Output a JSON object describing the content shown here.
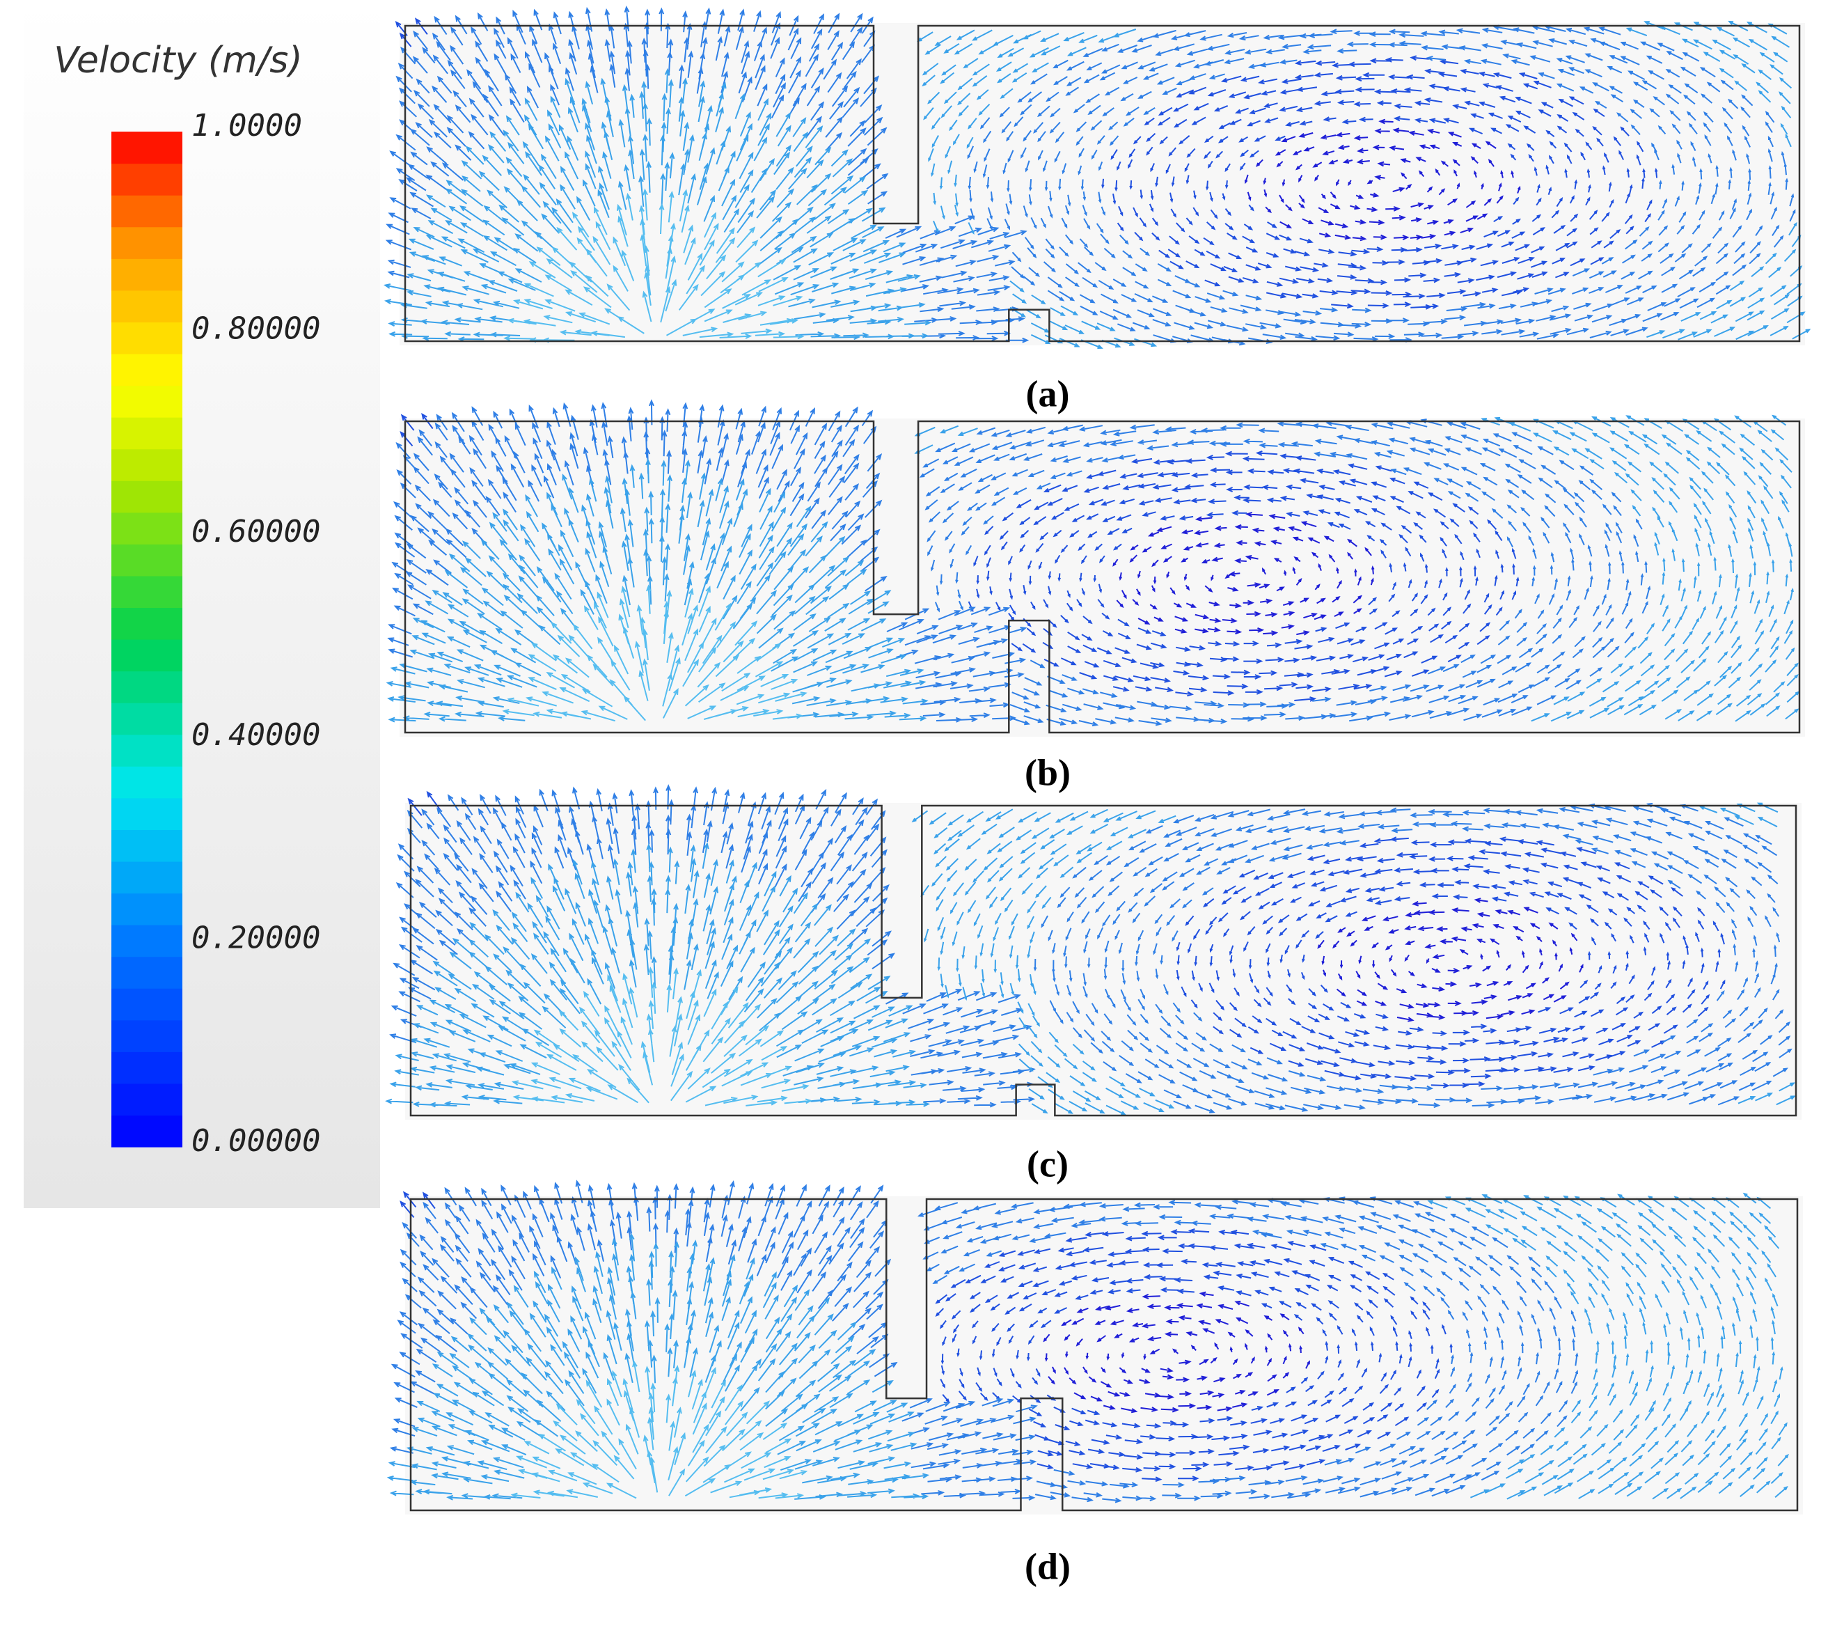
{
  "colorbar": {
    "title": "Velocity (m/s)",
    "range": [
      0,
      1
    ],
    "ticks": [
      {
        "value": 1,
        "label": "1.0000"
      },
      {
        "value": 0.8,
        "label": "0.80000"
      },
      {
        "value": 0.6,
        "label": "0.60000"
      },
      {
        "value": 0.4,
        "label": "0.40000"
      },
      {
        "value": 0.2,
        "label": "0.20000"
      },
      {
        "value": 0,
        "label": "0.00000"
      }
    ]
  },
  "panels": [
    {
      "label": "(a)"
    },
    {
      "label": "(b)"
    },
    {
      "label": "(c)"
    },
    {
      "label": "(d)"
    }
  ]
}
